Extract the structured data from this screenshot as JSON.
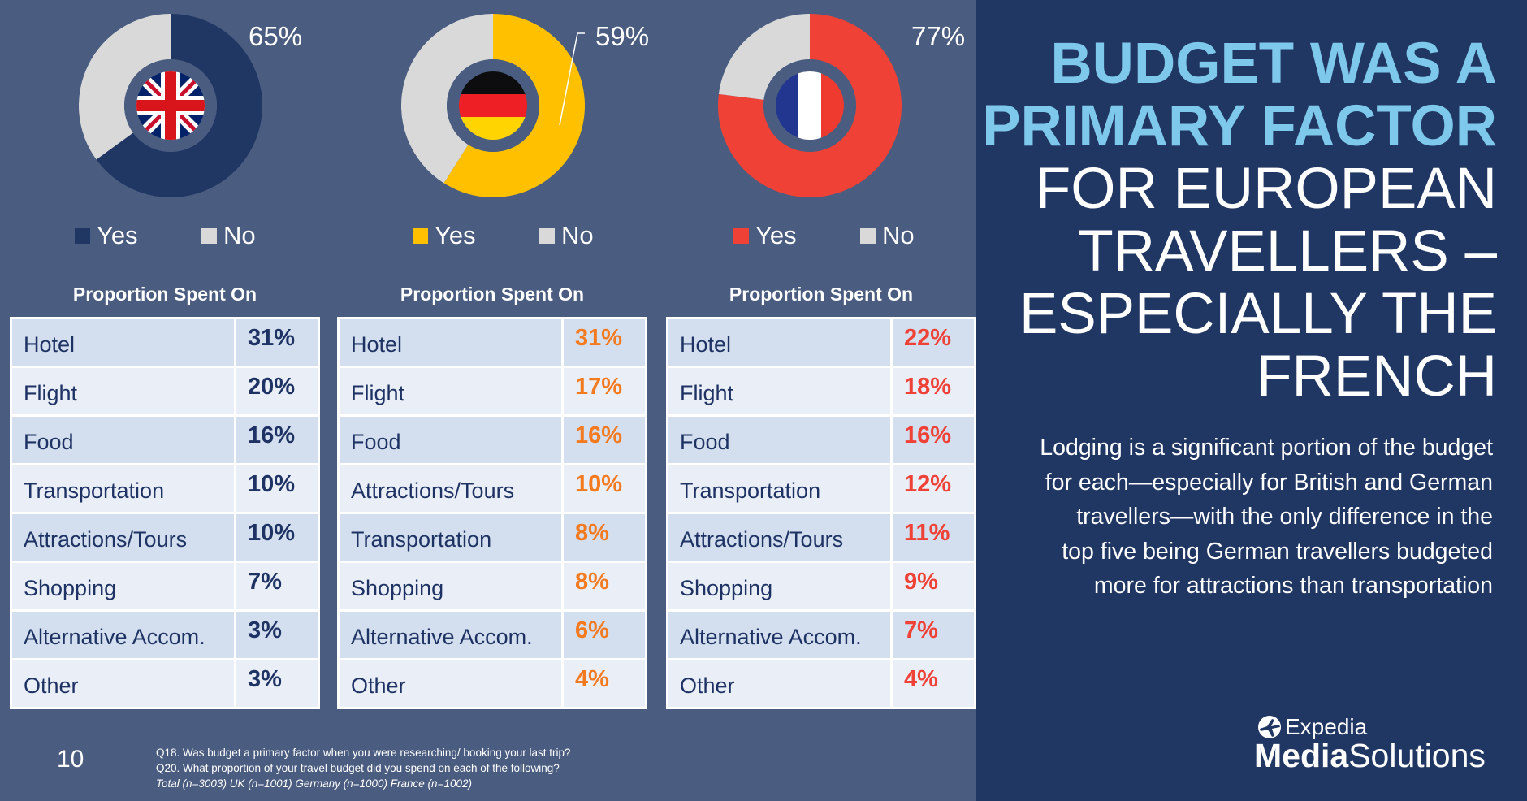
{
  "colors": {
    "left_background": "#4a5d80",
    "right_background": "#213763",
    "no_slice": "#d9d9d9",
    "headline_accent": "#7ec8eb",
    "table_text": "#1e3264"
  },
  "chart_data": [
    {
      "type": "pie",
      "variant": "donut",
      "country": "UK",
      "flag_icon": "uk-flag-icon",
      "categories": [
        "Yes",
        "No"
      ],
      "values": [
        65,
        35
      ],
      "colors": [
        "#213763",
        "#d9d9d9"
      ],
      "label": "65%",
      "legend": [
        "Yes",
        "No"
      ],
      "legend_position": "bottom"
    },
    {
      "type": "pie",
      "variant": "donut",
      "country": "Germany",
      "flag_icon": "germany-flag-icon",
      "categories": [
        "Yes",
        "No"
      ],
      "values": [
        59,
        41
      ],
      "colors": [
        "#ffc000",
        "#d9d9d9"
      ],
      "label": "59%",
      "legend": [
        "Yes",
        "No"
      ],
      "legend_position": "bottom"
    },
    {
      "type": "pie",
      "variant": "donut",
      "country": "France",
      "flag_icon": "france-flag-icon",
      "categories": [
        "Yes",
        "No"
      ],
      "values": [
        77,
        23
      ],
      "colors": [
        "#ef4136",
        "#d9d9d9"
      ],
      "label": "77%",
      "legend": [
        "Yes",
        "No"
      ],
      "legend_position": "bottom"
    },
    {
      "type": "table",
      "country": "UK",
      "title": "Proportion Spent On",
      "value_color": "#1e3264",
      "rows": [
        {
          "category": "Hotel",
          "value": "31%"
        },
        {
          "category": "Flight",
          "value": "20%"
        },
        {
          "category": "Food",
          "value": "16%"
        },
        {
          "category": "Transportation",
          "value": "10%"
        },
        {
          "category": "Attractions/Tours",
          "value": "10%"
        },
        {
          "category": "Shopping",
          "value": "7%"
        },
        {
          "category": "Alternative Accom.",
          "value": "3%"
        },
        {
          "category": "Other",
          "value": "3%"
        }
      ]
    },
    {
      "type": "table",
      "country": "Germany",
      "title": "Proportion Spent On",
      "value_color": "#f47a20",
      "rows": [
        {
          "category": "Hotel",
          "value": "31%"
        },
        {
          "category": "Flight",
          "value": "17%"
        },
        {
          "category": "Food",
          "value": "16%"
        },
        {
          "category": "Attractions/Tours",
          "value": "10%"
        },
        {
          "category": "Transportation",
          "value": "8%"
        },
        {
          "category": "Shopping",
          "value": "8%"
        },
        {
          "category": "Alternative Accom.",
          "value": "6%"
        },
        {
          "category": "Other",
          "value": "4%"
        }
      ]
    },
    {
      "type": "table",
      "country": "France",
      "title": "Proportion Spent On",
      "value_color": "#ef4136",
      "rows": [
        {
          "category": "Hotel",
          "value": "22%"
        },
        {
          "category": "Flight",
          "value": "18%"
        },
        {
          "category": "Food",
          "value": "16%"
        },
        {
          "category": "Transportation",
          "value": "12%"
        },
        {
          "category": "Attractions/Tours",
          "value": "11%"
        },
        {
          "category": "Shopping",
          "value": "9%"
        },
        {
          "category": "Alternative Accom.",
          "value": "7%"
        },
        {
          "category": "Other",
          "value": "4%"
        }
      ]
    }
  ],
  "footer": {
    "page_number": "10",
    "notes": [
      "Q18. Was budget a primary factor when you were researching/ booking your last trip?",
      "Q20. What proportion of your travel budget did you spend on each of the following?"
    ],
    "base": "Total (n=3003) UK (n=1001) Germany (n=1000) France (n=1002)"
  },
  "headline": {
    "accent_lines": [
      "BUDGET WAS A",
      "PRIMARY FACTOR"
    ],
    "plain_lines": [
      "FOR EUROPEAN",
      "TRAVELLERS –",
      "ESPECIALLY THE",
      "FRENCH"
    ]
  },
  "body_text": "Lodging is a significant portion of the budget for each—especially for British and German travellers—with the only difference in the top five being German travellers budgeted more for attractions than transportation",
  "logo": {
    "icon": "expedia-globe-icon",
    "top": "Expedia",
    "bottom_bold": "Media",
    "bottom_light": "Solutions"
  }
}
